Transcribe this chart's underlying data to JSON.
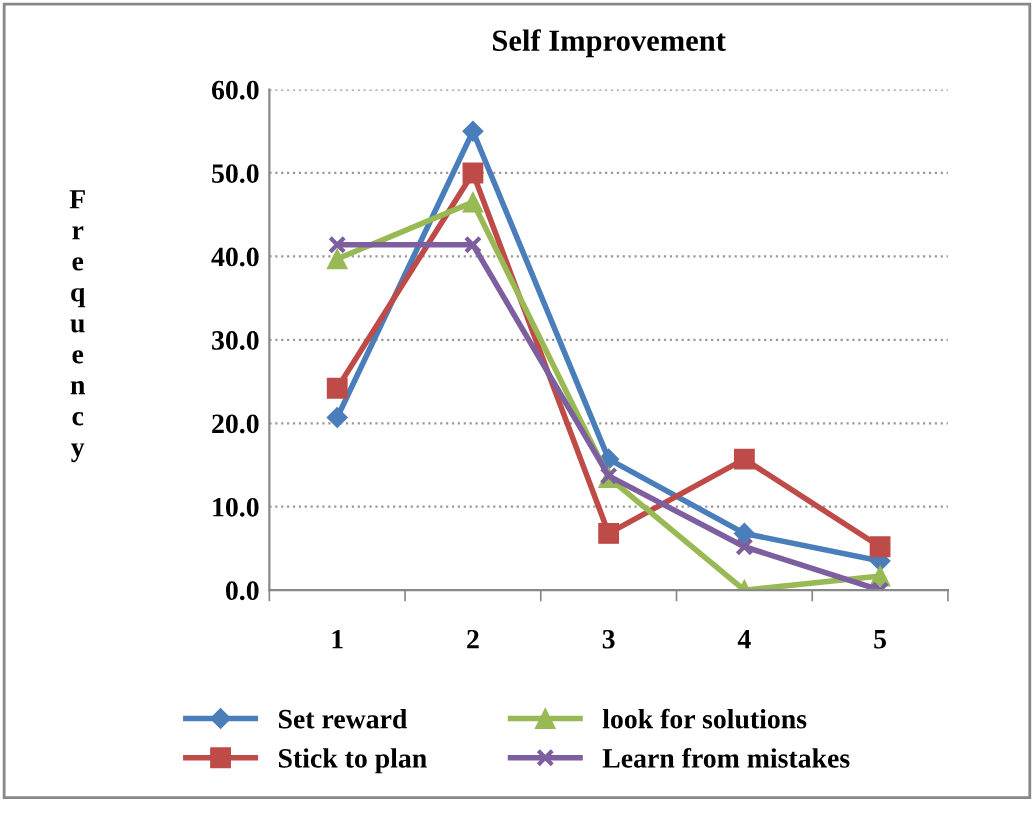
{
  "chart_data": {
    "type": "line",
    "title": "Self Improvement",
    "ylabel": "Frequency",
    "categories": [
      "1",
      "2",
      "3",
      "4",
      "5"
    ],
    "series": [
      {
        "name": "Set reward",
        "color": "#4a7ebb",
        "marker": "diamond",
        "values": [
          20.7,
          55.0,
          15.7,
          6.8,
          3.5
        ]
      },
      {
        "name": "Stick to plan",
        "color": "#be4b48",
        "marker": "square",
        "values": [
          24.2,
          50.0,
          6.8,
          15.7,
          5.2
        ]
      },
      {
        "name": "look for solutions",
        "color": "#98b954",
        "marker": "triangle",
        "values": [
          39.7,
          46.5,
          13.5,
          0.0,
          1.7
        ]
      },
      {
        "name": "Learn from mistakes",
        "color": "#7d5fa0",
        "marker": "cross",
        "values": [
          41.4,
          41.4,
          13.7,
          5.2,
          0.0
        ]
      }
    ],
    "ylim": [
      0,
      60
    ],
    "yticks": [
      {
        "value": 0,
        "label": "0.0"
      },
      {
        "value": 10,
        "label": "10.0"
      },
      {
        "value": 20,
        "label": "20.0"
      },
      {
        "value": 30,
        "label": "30.0"
      },
      {
        "value": 40,
        "label": "40.0"
      },
      {
        "value": 50,
        "label": "50.0"
      },
      {
        "value": 60,
        "label": "60.0"
      }
    ],
    "grid": "y",
    "legend": "bottom",
    "line_style": "solid"
  }
}
